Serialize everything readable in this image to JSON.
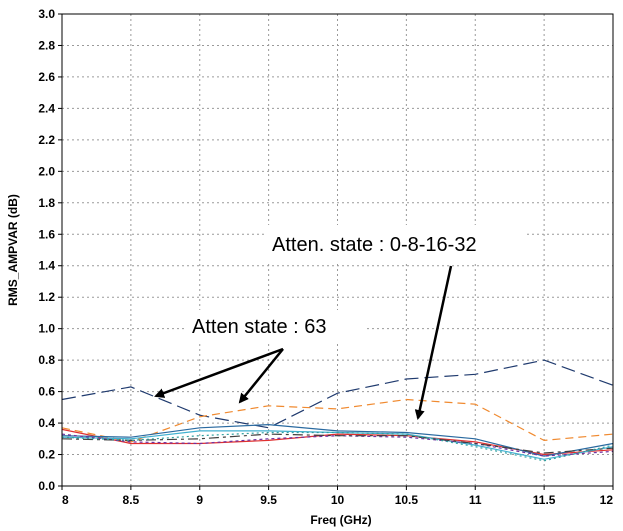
{
  "chart_data": {
    "type": "line",
    "xlabel": "Freq (GHz)",
    "ylabel": "RMS_AMPVAR (dB)",
    "xlim": [
      8,
      12
    ],
    "ylim": [
      0,
      3
    ],
    "xticks": [
      "8",
      "8.5",
      "9",
      "9.5",
      "10",
      "10.5",
      "11",
      "11.5",
      "12"
    ],
    "yticks": [
      "0.0",
      "0.2",
      "0.4",
      "0.6",
      "0.8",
      "1.0",
      "1.2",
      "1.4",
      "1.6",
      "1.8",
      "2.0",
      "2.2",
      "2.4",
      "2.6",
      "2.8",
      "3.0"
    ],
    "grid": true,
    "legend": "none",
    "series": [
      {
        "color": "#1f3a6e",
        "dash": "14,6",
        "x": [
          8,
          8.5,
          9,
          9.5,
          10,
          10.5,
          11,
          11.5,
          12
        ],
        "y": [
          0.55,
          0.63,
          0.45,
          0.37,
          0.59,
          0.68,
          0.71,
          0.8,
          0.64
        ]
      },
      {
        "color": "#f08a30",
        "dash": "8,5",
        "x": [
          8,
          8.5,
          9,
          9.5,
          10,
          10.5,
          11,
          11.5,
          12
        ],
        "y": [
          0.37,
          0.28,
          0.44,
          0.51,
          0.49,
          0.55,
          0.52,
          0.29,
          0.33
        ]
      },
      {
        "color": "#e03030",
        "dash": "",
        "x": [
          8,
          8.5,
          9,
          9.5,
          10,
          10.5,
          11,
          11.5,
          12
        ],
        "y": [
          0.36,
          0.27,
          0.27,
          0.29,
          0.33,
          0.32,
          0.28,
          0.2,
          0.23
        ]
      },
      {
        "color": "#2a6aa0",
        "dash": "",
        "x": [
          8,
          8.5,
          9,
          9.5,
          10,
          10.5,
          11,
          11.5,
          12
        ],
        "y": [
          0.32,
          0.31,
          0.37,
          0.39,
          0.35,
          0.34,
          0.3,
          0.19,
          0.27
        ]
      },
      {
        "color": "#40b0d0",
        "dash": "",
        "x": [
          8,
          8.5,
          9,
          9.5,
          10,
          10.5,
          11,
          11.5,
          12
        ],
        "y": [
          0.31,
          0.3,
          0.35,
          0.35,
          0.34,
          0.33,
          0.26,
          0.17,
          0.25
        ]
      },
      {
        "color": "#7030a0",
        "dash": "3,3",
        "x": [
          8,
          8.5,
          9,
          9.5,
          10,
          10.5,
          11,
          11.5,
          12
        ],
        "y": [
          0.33,
          0.28,
          0.27,
          0.3,
          0.32,
          0.31,
          0.27,
          0.19,
          0.22
        ]
      },
      {
        "color": "#404040",
        "dash": "10,4,3,4",
        "x": [
          8,
          8.5,
          9,
          9.5,
          10,
          10.5,
          11,
          11.5,
          12
        ],
        "y": [
          0.3,
          0.29,
          0.3,
          0.33,
          0.32,
          0.32,
          0.27,
          0.21,
          0.24
        ]
      },
      {
        "color": "#30a0a0",
        "dash": "2,3",
        "x": [
          8,
          8.5,
          9,
          9.5,
          10,
          10.5,
          11,
          11.5,
          12
        ],
        "y": [
          0.31,
          0.29,
          0.32,
          0.34,
          0.34,
          0.33,
          0.25,
          0.16,
          0.26
        ]
      }
    ],
    "annotations": [
      {
        "text": "Atten. state : 0-8-16-32"
      },
      {
        "text": "Atten state : 63"
      }
    ]
  }
}
